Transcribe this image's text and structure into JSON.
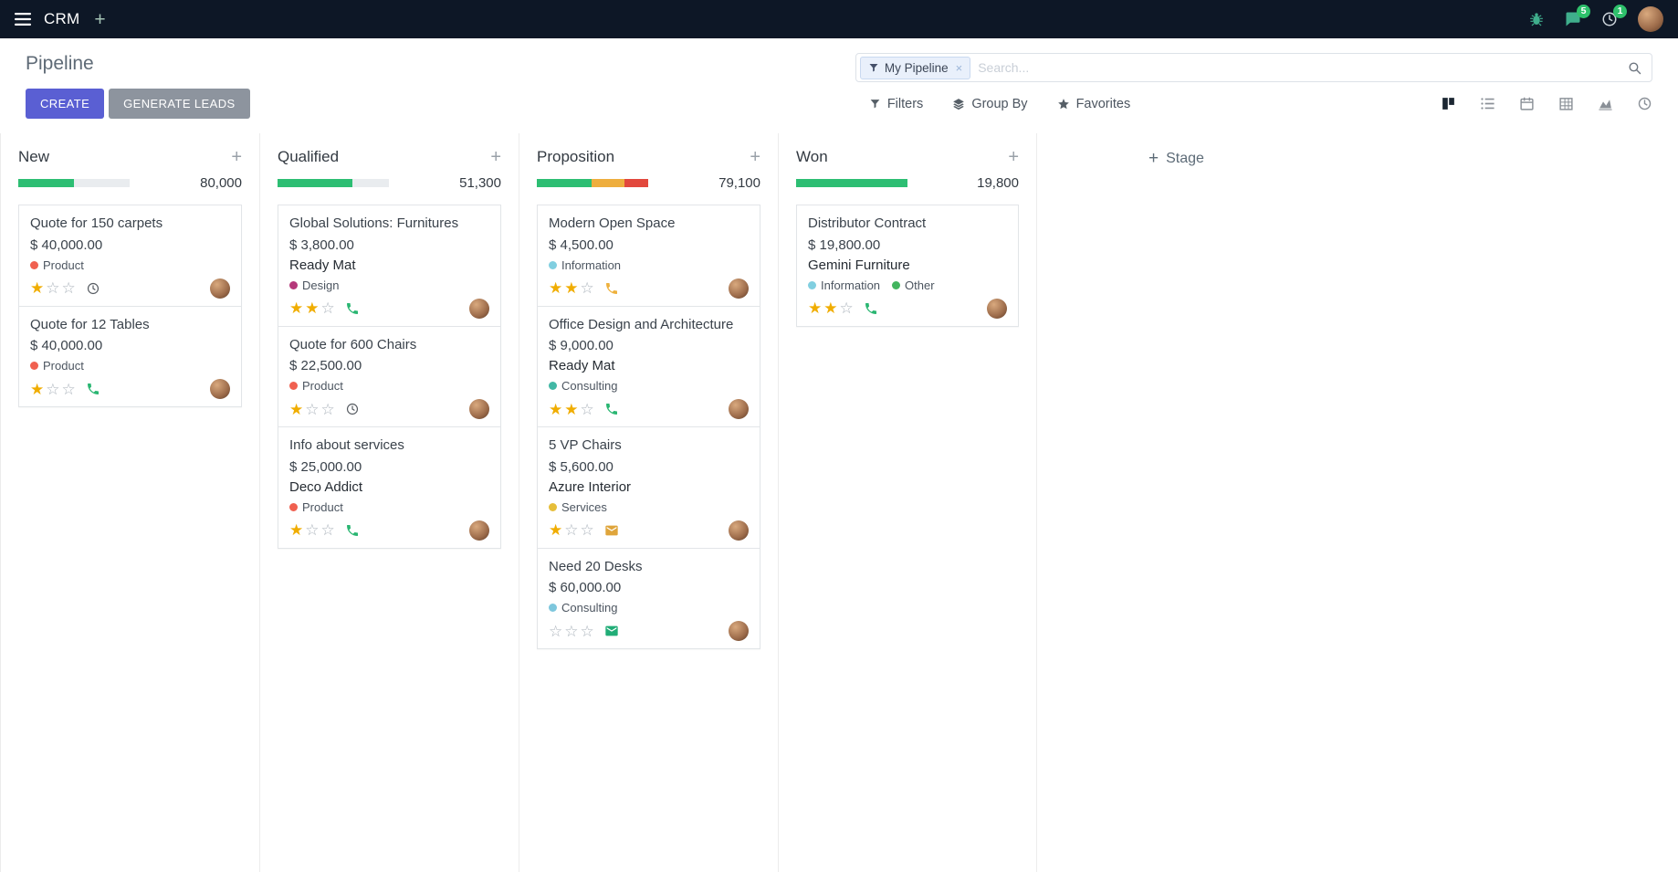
{
  "topbar": {
    "app_name": "CRM",
    "messages_badge": "5",
    "activities_badge": "1"
  },
  "control_panel": {
    "breadcrumb": "Pipeline",
    "create_label": "CREATE",
    "generate_label": "GENERATE LEADS",
    "search_facet": "My Pipeline",
    "search_placeholder": "Search...",
    "filters_label": "Filters",
    "groupby_label": "Group By",
    "favorites_label": "Favorites"
  },
  "icons": {
    "topbar": [
      "menu",
      "plus",
      "bug",
      "chat-bubble",
      "clock",
      "avatar"
    ],
    "search": "magnifier",
    "filters": "funnel",
    "group_by": "layers",
    "favorites": "star",
    "view_switcher": [
      "kanban",
      "list",
      "calendar",
      "pivot",
      "graph",
      "activity-clock"
    ]
  },
  "accents": {
    "primary_button": "#5a5fd3",
    "secondary_button": "#8d949e",
    "badge_green": "#2ec06b",
    "progress_green": "#2dbe73",
    "progress_yellow": "#eeae3e",
    "progress_red": "#e2483d",
    "progress_empty": "#e9ecef",
    "star_gold": "#f0ad00"
  },
  "board": {
    "add_stage_label": "Stage",
    "columns": [
      {
        "name": "New",
        "total": "80,000",
        "progress": [
          {
            "color": "#2dbe73",
            "pct": 50
          },
          {
            "color": "#e9ecef",
            "pct": 50
          }
        ],
        "cards": [
          {
            "title": "Quote for 150 carpets",
            "amount": "$ 40,000.00",
            "partner": null,
            "tags": [
              {
                "label": "Product",
                "color": "#f06050"
              }
            ],
            "stars": 1,
            "activity": {
              "icon": "clock",
              "color": "#565b61"
            }
          },
          {
            "title": "Quote for 12 Tables",
            "amount": "$ 40,000.00",
            "partner": null,
            "tags": [
              {
                "label": "Product",
                "color": "#f06050"
              }
            ],
            "stars": 1,
            "activity": {
              "icon": "phone",
              "color": "#2ab672"
            }
          }
        ]
      },
      {
        "name": "Qualified",
        "total": "51,300",
        "progress": [
          {
            "color": "#2dbe73",
            "pct": 67
          },
          {
            "color": "#e9ecef",
            "pct": 33
          }
        ],
        "cards": [
          {
            "title": "Global Solutions: Furnitures",
            "amount": "$ 3,800.00",
            "partner": "Ready Mat",
            "tags": [
              {
                "label": "Design",
                "color": "#b5387a"
              }
            ],
            "stars": 2,
            "activity": {
              "icon": "phone",
              "color": "#2ab672"
            }
          },
          {
            "title": "Quote for 600 Chairs",
            "amount": "$ 22,500.00",
            "partner": null,
            "tags": [
              {
                "label": "Product",
                "color": "#f06050"
              }
            ],
            "stars": 1,
            "activity": {
              "icon": "clock",
              "color": "#565b61"
            }
          },
          {
            "title": "Info about services",
            "amount": "$ 25,000.00",
            "partner": "Deco Addict",
            "tags": [
              {
                "label": "Product",
                "color": "#f06050"
              }
            ],
            "stars": 1,
            "activity": {
              "icon": "phone",
              "color": "#2ab672"
            }
          }
        ]
      },
      {
        "name": "Proposition",
        "total": "79,100",
        "progress": [
          {
            "color": "#2dbe73",
            "pct": 49
          },
          {
            "color": "#eeae3e",
            "pct": 30
          },
          {
            "color": "#e2483d",
            "pct": 21
          }
        ],
        "cards": [
          {
            "title": "Modern Open Space",
            "amount": "$ 4,500.00",
            "partner": null,
            "tags": [
              {
                "label": "Information",
                "color": "#81cfe0"
              }
            ],
            "stars": 2,
            "activity": {
              "icon": "phone",
              "color": "#eeb13d"
            }
          },
          {
            "title": "Office Design and Architecture",
            "amount": "$ 9,000.00",
            "partner": "Ready Mat",
            "tags": [
              {
                "label": "Consulting",
                "color": "#42b8a5"
              }
            ],
            "stars": 2,
            "activity": {
              "icon": "phone",
              "color": "#2ab672"
            }
          },
          {
            "title": "5 VP Chairs",
            "amount": "$ 5,600.00",
            "partner": "Azure Interior",
            "tags": [
              {
                "label": "Services",
                "color": "#e6be3a"
              }
            ],
            "stars": 1,
            "activity": {
              "icon": "envelope",
              "color": "#dfa53b"
            }
          },
          {
            "title": "Need 20 Desks",
            "amount": "$ 60,000.00",
            "partner": null,
            "tags": [
              {
                "label": "Consulting",
                "color": "#7ec7dd"
              }
            ],
            "stars": 0,
            "activity": {
              "icon": "envelope",
              "color": "#21ad77"
            }
          }
        ]
      },
      {
        "name": "Won",
        "total": "19,800",
        "progress": [
          {
            "color": "#2dbe73",
            "pct": 100
          }
        ],
        "cards": [
          {
            "title": "Distributor Contract",
            "amount": "$ 19,800.00",
            "partner": "Gemini Furniture",
            "tags": [
              {
                "label": "Information",
                "color": "#81cfe0"
              },
              {
                "label": "Other",
                "color": "#43b55f"
              }
            ],
            "stars": 2,
            "activity": {
              "icon": "phone",
              "color": "#2ab672"
            }
          }
        ]
      }
    ]
  }
}
